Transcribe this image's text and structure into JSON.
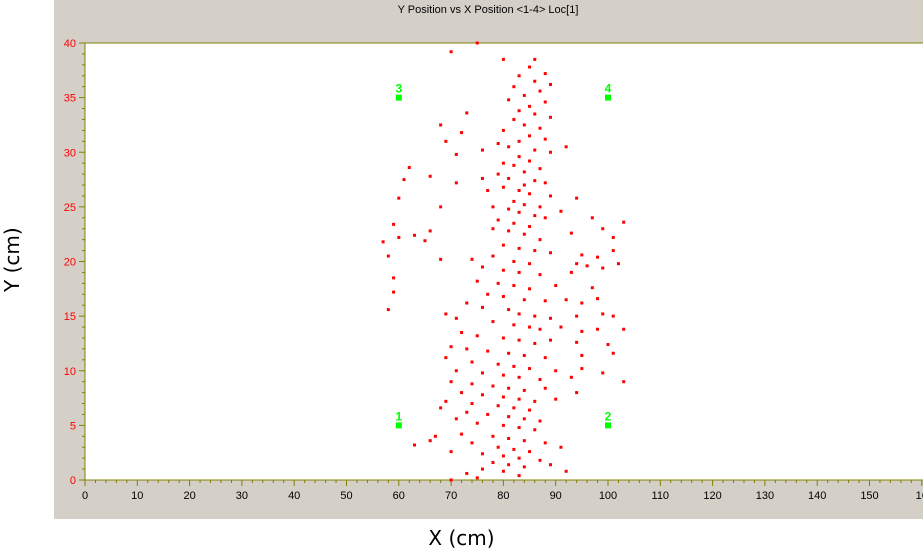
{
  "window": {
    "title": "Y Position vs X Position <1-4> Loc[1]"
  },
  "colors": {
    "plot_bg": "#ffffff",
    "frame_bg": "#d4d0c8",
    "axis": "#808000",
    "ytick_text": "#ff0000",
    "xtick_text": "#000000",
    "points": "#ff0000",
    "markers": "#00ff00"
  },
  "chart_data": {
    "type": "scatter",
    "title": "Y Position vs X Position <1-4> Loc[1]",
    "xlabel": "X (cm)",
    "ylabel": "Y (cm)",
    "xlim": [
      0,
      160
    ],
    "ylim": [
      0,
      40
    ],
    "xticks": [
      "0",
      "10",
      "20",
      "30",
      "40",
      "50",
      "60",
      "70",
      "80",
      "90",
      "100",
      "110",
      "120",
      "130",
      "140",
      "150",
      "16"
    ],
    "yticks": [
      "0",
      "5",
      "10",
      "15",
      "20",
      "25",
      "30",
      "35",
      "40"
    ],
    "grid": false,
    "markers": [
      {
        "label": "1",
        "x": 60,
        "y": 5
      },
      {
        "label": "2",
        "x": 100,
        "y": 5
      },
      {
        "label": "3",
        "x": 60,
        "y": 35
      },
      {
        "label": "4",
        "x": 100,
        "y": 35
      }
    ],
    "series": [
      {
        "points": [
          [
            75,
            40
          ],
          [
            70,
            39.2
          ],
          [
            80,
            38.5
          ],
          [
            86,
            38.5
          ],
          [
            85,
            37.8
          ],
          [
            88,
            37.2
          ],
          [
            83,
            37
          ],
          [
            86,
            36.5
          ],
          [
            89,
            36.2
          ],
          [
            82,
            36
          ],
          [
            87,
            35.6
          ],
          [
            84,
            35.2
          ],
          [
            81,
            34.8
          ],
          [
            88,
            34.6
          ],
          [
            85,
            34.2
          ],
          [
            83,
            33.8
          ],
          [
            86,
            33.5
          ],
          [
            89,
            33.2
          ],
          [
            73,
            33.6
          ],
          [
            82,
            33
          ],
          [
            84,
            32.5
          ],
          [
            87,
            32.2
          ],
          [
            72,
            31.8
          ],
          [
            68,
            32.5
          ],
          [
            80,
            32
          ],
          [
            85,
            31.5
          ],
          [
            88,
            31.2
          ],
          [
            83,
            31
          ],
          [
            79,
            30.8
          ],
          [
            81,
            30.5
          ],
          [
            86,
            30.2
          ],
          [
            89,
            30
          ],
          [
            92,
            30.5
          ],
          [
            76,
            30.2
          ],
          [
            69,
            31
          ],
          [
            71,
            29.8
          ],
          [
            83,
            29.6
          ],
          [
            85,
            29.2
          ],
          [
            80,
            29
          ],
          [
            82,
            28.8
          ],
          [
            87,
            28.5
          ],
          [
            84,
            28.2
          ],
          [
            62,
            28.6
          ],
          [
            66,
            27.8
          ],
          [
            79,
            28
          ],
          [
            81,
            27.6
          ],
          [
            86,
            27.4
          ],
          [
            88,
            27.2
          ],
          [
            84,
            27
          ],
          [
            76,
            27.6
          ],
          [
            71,
            27.2
          ],
          [
            61,
            27.5
          ],
          [
            80,
            26.8
          ],
          [
            83,
            26.5
          ],
          [
            85,
            26.2
          ],
          [
            89,
            26
          ],
          [
            77,
            26.5
          ],
          [
            94,
            25.8
          ],
          [
            60,
            25.8
          ],
          [
            82,
            25.5
          ],
          [
            84,
            25.2
          ],
          [
            87,
            25
          ],
          [
            68,
            25
          ],
          [
            78,
            25
          ],
          [
            81,
            24.8
          ],
          [
            83,
            24.5
          ],
          [
            86,
            24.2
          ],
          [
            88,
            24
          ],
          [
            91,
            24.6
          ],
          [
            97,
            24
          ],
          [
            79,
            23.8
          ],
          [
            82,
            23.5
          ],
          [
            85,
            23.2
          ],
          [
            103,
            23.6
          ],
          [
            59,
            23.4
          ],
          [
            66,
            22.8
          ],
          [
            63,
            22.4
          ],
          [
            57,
            21.8
          ],
          [
            78,
            23
          ],
          [
            81,
            22.8
          ],
          [
            84,
            22.5
          ],
          [
            87,
            22
          ],
          [
            99,
            23
          ],
          [
            101,
            22.2
          ],
          [
            93,
            22.6
          ],
          [
            60,
            22.2
          ],
          [
            65,
            21.9
          ],
          [
            80,
            21.5
          ],
          [
            83,
            21.2
          ],
          [
            86,
            21
          ],
          [
            89,
            20.8
          ],
          [
            95,
            20.6
          ],
          [
            98,
            20.4
          ],
          [
            101,
            21
          ],
          [
            78,
            20.5
          ],
          [
            74,
            20.2
          ],
          [
            82,
            20
          ],
          [
            85,
            19.8
          ],
          [
            94,
            19.8
          ],
          [
            96,
            19.6
          ],
          [
            58,
            20.5
          ],
          [
            68,
            20.2
          ],
          [
            76,
            19.5
          ],
          [
            80,
            19.2
          ],
          [
            83,
            19
          ],
          [
            87,
            18.8
          ],
          [
            93,
            19
          ],
          [
            99,
            19.4
          ],
          [
            102,
            19.8
          ],
          [
            59,
            18.5
          ],
          [
            75,
            18.2
          ],
          [
            79,
            18
          ],
          [
            82,
            17.8
          ],
          [
            85,
            17.5
          ],
          [
            90,
            17.8
          ],
          [
            97,
            17.6
          ],
          [
            59,
            17.2
          ],
          [
            77,
            17
          ],
          [
            80,
            16.8
          ],
          [
            84,
            16.5
          ],
          [
            88,
            16.4
          ],
          [
            92,
            16.5
          ],
          [
            95,
            16.2
          ],
          [
            98,
            16.6
          ],
          [
            73,
            16.2
          ],
          [
            76,
            15.8
          ],
          [
            81,
            15.6
          ],
          [
            83,
            15.2
          ],
          [
            86,
            15
          ],
          [
            89,
            14.8
          ],
          [
            94,
            15
          ],
          [
            99,
            15.2
          ],
          [
            101,
            15
          ],
          [
            58,
            15.6
          ],
          [
            69,
            15.2
          ],
          [
            71,
            14.8
          ],
          [
            78,
            14.5
          ],
          [
            82,
            14.2
          ],
          [
            85,
            14
          ],
          [
            87,
            13.8
          ],
          [
            91,
            14
          ],
          [
            95,
            13.6
          ],
          [
            98,
            13.8
          ],
          [
            103,
            13.8
          ],
          [
            72,
            13.5
          ],
          [
            75,
            13.2
          ],
          [
            80,
            13
          ],
          [
            83,
            12.8
          ],
          [
            86,
            12.5
          ],
          [
            89,
            12.8
          ],
          [
            94,
            12.6
          ],
          [
            100,
            12.4
          ],
          [
            70,
            12.2
          ],
          [
            73,
            12
          ],
          [
            77,
            11.8
          ],
          [
            81,
            11.6
          ],
          [
            84,
            11.4
          ],
          [
            88,
            11.2
          ],
          [
            95,
            11.4
          ],
          [
            101,
            11.6
          ],
          [
            69,
            11.2
          ],
          [
            74,
            10.8
          ],
          [
            79,
            10.6
          ],
          [
            82,
            10.4
          ],
          [
            85,
            10.2
          ],
          [
            90,
            10
          ],
          [
            95,
            10.2
          ],
          [
            71,
            10
          ],
          [
            76,
            9.8
          ],
          [
            80,
            9.6
          ],
          [
            83,
            9.4
          ],
          [
            87,
            9.2
          ],
          [
            93,
            9.4
          ],
          [
            99,
            9.8
          ],
          [
            103,
            9
          ],
          [
            70,
            9
          ],
          [
            74,
            8.8
          ],
          [
            78,
            8.6
          ],
          [
            81,
            8.4
          ],
          [
            84,
            8.2
          ],
          [
            88,
            8.4
          ],
          [
            94,
            8
          ],
          [
            72,
            8
          ],
          [
            76,
            7.8
          ],
          [
            80,
            7.6
          ],
          [
            83,
            7.4
          ],
          [
            86,
            7.2
          ],
          [
            90,
            7.4
          ],
          [
            69,
            7.2
          ],
          [
            74,
            7
          ],
          [
            79,
            6.8
          ],
          [
            82,
            6.6
          ],
          [
            85,
            6.4
          ],
          [
            68,
            6.6
          ],
          [
            73,
            6.2
          ],
          [
            77,
            6
          ],
          [
            81,
            5.8
          ],
          [
            84,
            5.6
          ],
          [
            87,
            5.4
          ],
          [
            71,
            5.6
          ],
          [
            75,
            5.2
          ],
          [
            80,
            5
          ],
          [
            83,
            4.8
          ],
          [
            86,
            4.6
          ],
          [
            67,
            4
          ],
          [
            72,
            4.2
          ],
          [
            78,
            4
          ],
          [
            81,
            3.8
          ],
          [
            84,
            3.6
          ],
          [
            88,
            3.4
          ],
          [
            63,
            3.2
          ],
          [
            66,
            3.6
          ],
          [
            74,
            3.4
          ],
          [
            79,
            3
          ],
          [
            82,
            2.8
          ],
          [
            85,
            2.6
          ],
          [
            91,
            3
          ],
          [
            70,
            2.6
          ],
          [
            76,
            2.4
          ],
          [
            80,
            2.2
          ],
          [
            83,
            2
          ],
          [
            87,
            1.8
          ],
          [
            78,
            1.6
          ],
          [
            81,
            1.4
          ],
          [
            84,
            1.2
          ],
          [
            89,
            1.4
          ],
          [
            76,
            1
          ],
          [
            80,
            0.8
          ],
          [
            73,
            0.6
          ],
          [
            92,
            0.8
          ],
          [
            83,
            0.4
          ],
          [
            75,
            0.2
          ],
          [
            70,
            0
          ]
        ]
      }
    ]
  }
}
